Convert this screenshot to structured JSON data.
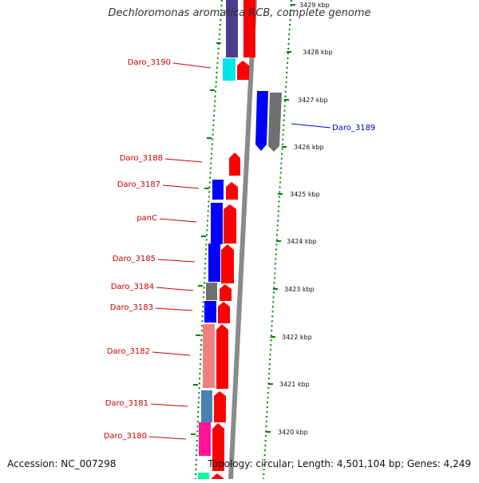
{
  "title": "Dechloromonas aromatica RCB, complete genome",
  "footer": {
    "accession": "Accession: NC_007298",
    "summary": "Topology: circular; Length: 4,501,104 bp; Genes: 4,249"
  },
  "scale_ticks": [
    "3429 kbp",
    "3428 kbp",
    "3427 kbp",
    "3426 kbp",
    "3425 kbp",
    "3424 kbp",
    "3423 kbp",
    "3422 kbp",
    "3421 kbp",
    "3420 kbp"
  ],
  "gene_labels": [
    "Daro_3190",
    "Daro_3189",
    "Daro_3188",
    "Daro_3187",
    "panC",
    "Daro_3185",
    "Daro_3184",
    "Daro_3183",
    "Daro_3182",
    "Daro_3181",
    "Daro_3180"
  ],
  "colors": {
    "forward_cds": "#ff0000",
    "reverse_cds": "#0000ff",
    "backbone": "#888888",
    "ticks": "#008000",
    "label": "#cc0000",
    "label_alt": "#0000cc"
  }
}
